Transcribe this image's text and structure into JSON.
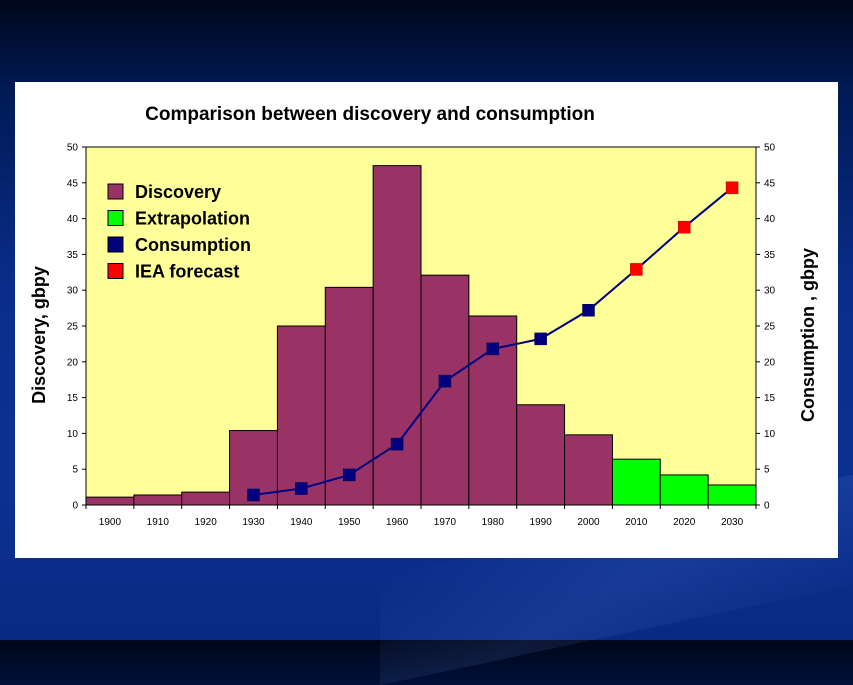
{
  "chart_data": {
    "type": "bar",
    "title": "Comparison between discovery and consumption",
    "categories": [
      "1900",
      "1910",
      "1920",
      "1930",
      "1940",
      "1950",
      "1960",
      "1970",
      "1980",
      "1990",
      "2000",
      "2010",
      "2020",
      "2030"
    ],
    "ylabel_left": "Discovery, gbpy",
    "ylabel_right": "Consumption , gbpy",
    "ylim": [
      0,
      50
    ],
    "yticks": [
      0,
      5,
      10,
      15,
      20,
      25,
      30,
      35,
      40,
      45,
      50
    ],
    "series": [
      {
        "name": "Discovery",
        "kind": "bar",
        "color": "#993366",
        "values": [
          1.1,
          1.4,
          1.8,
          10.4,
          25.0,
          30.4,
          47.4,
          32.1,
          26.4,
          14.0,
          9.8,
          null,
          null,
          null
        ]
      },
      {
        "name": "Extrapolation",
        "kind": "bar",
        "color": "#00ff00",
        "values": [
          null,
          null,
          null,
          null,
          null,
          null,
          null,
          null,
          null,
          null,
          null,
          6.4,
          4.2,
          2.8
        ]
      },
      {
        "name": "Consumption",
        "kind": "line",
        "color": "#000080",
        "values": [
          null,
          null,
          null,
          1.4,
          2.3,
          4.2,
          8.5,
          17.3,
          21.8,
          23.2,
          27.2,
          null,
          null,
          null
        ]
      },
      {
        "name": "IEA forecast",
        "kind": "line",
        "color": "#ff0000",
        "values": [
          null,
          null,
          null,
          null,
          null,
          null,
          null,
          null,
          null,
          null,
          null,
          32.9,
          38.8,
          44.3
        ]
      }
    ],
    "plot_background": "#ffff99",
    "line_color": "#000080",
    "legend_position": "top-left",
    "grid": false
  }
}
